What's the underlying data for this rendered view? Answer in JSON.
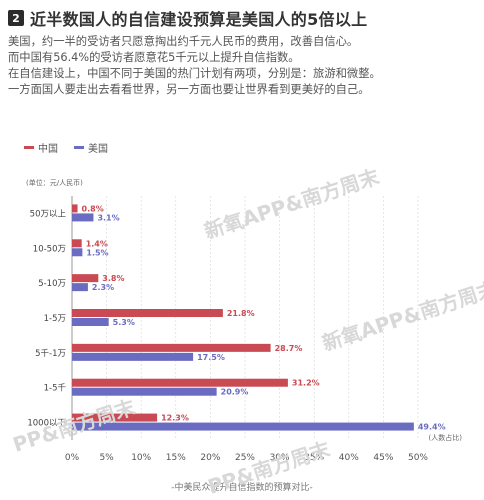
{
  "header": {
    "number": "2",
    "title": "近半数国人的自信建设预算是美国人的5倍以上",
    "paragraphs": [
      "美国，约一半的受访者只愿意掏出约千元人民币的费用，改善自信心。",
      "而中国有56.4%的受访者愿意花5千元以上提升自信指数。",
      "在自信建设上，中国不同于美国的热门计划有两项，分别是：旅游和微整。",
      "一方面国人要走出去看看世界，另一方面也要让世界看到更美好的自己。"
    ]
  },
  "watermarks": [
    "新氧APP&南方周末",
    "新氧APP&南方周末",
    "PP&南方周末",
    "PP&南方周末"
  ],
  "colors": {
    "china": "#c94a52",
    "usa": "#6a6cc2",
    "grid": "#d6d6d6",
    "axis": "#999999"
  },
  "chart_data": {
    "type": "bar",
    "orientation": "horizontal",
    "categories": [
      "50万以上",
      "10-50万",
      "5-10万",
      "1-5万",
      "5千-1万",
      "1-5千",
      "1000以下"
    ],
    "series": [
      {
        "name": "中国",
        "values": [
          0.8,
          1.4,
          3.8,
          21.8,
          28.7,
          31.2,
          12.3
        ],
        "labels": [
          "0.8%",
          "1.4%",
          "3.8%",
          "21.8%",
          "28.7%",
          "31.2%",
          "12.3%"
        ]
      },
      {
        "name": "美国",
        "values": [
          3.1,
          1.5,
          2.3,
          5.3,
          17.5,
          20.9,
          49.4
        ],
        "labels": [
          "3.1%",
          "1.5%",
          "2.3%",
          "5.3%",
          "17.5%",
          "20.9%",
          "49.4%"
        ]
      }
    ],
    "xlim": [
      0,
      50
    ],
    "xticks": [
      "0%",
      "5%",
      "10%",
      "15%",
      "20%",
      "25%",
      "30%",
      "35%",
      "40%",
      "45%",
      "50%"
    ],
    "unit_label": "(单位：元/人民币)",
    "x_unit_label": "(人数占比)",
    "caption": "-中美民众提升自信指数的预算对比-",
    "grid": true,
    "legend": "top-left"
  }
}
